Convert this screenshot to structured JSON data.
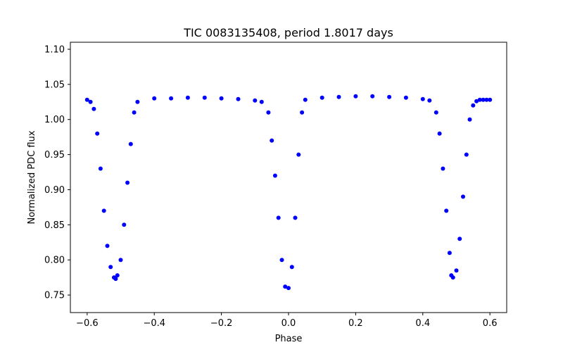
{
  "chart_data": {
    "type": "scatter",
    "title": "TIC 0083135408, period 1.8017 days",
    "xlabel": "Phase",
    "ylabel": "Normalized PDC flux",
    "xlim": [
      -0.65,
      0.65
    ],
    "ylim": [
      0.725,
      1.11
    ],
    "x_ticks": [
      -0.6,
      -0.4,
      -0.2,
      0.0,
      0.2,
      0.4,
      0.6
    ],
    "x_tick_labels": [
      "−0.6",
      "−0.4",
      "−0.2",
      "0.0",
      "0.2",
      "0.4",
      "0.6"
    ],
    "y_ticks": [
      0.75,
      0.8,
      0.85,
      0.9,
      0.95,
      1.0,
      1.05,
      1.1
    ],
    "y_tick_labels": [
      "0.75",
      "0.80",
      "0.85",
      "0.90",
      "0.95",
      "1.00",
      "1.05",
      "1.10"
    ],
    "grid": false,
    "marker_color": "#0000ff",
    "series": [
      {
        "x": [
          -0.6,
          -0.59,
          -0.58,
          -0.57,
          -0.56,
          -0.55,
          -0.54,
          -0.53,
          -0.52,
          -0.515,
          -0.51,
          -0.5,
          -0.49,
          -0.48,
          -0.47,
          -0.46,
          -0.45,
          -0.4,
          -0.35,
          -0.3,
          -0.25,
          -0.2,
          -0.15,
          -0.1,
          -0.08,
          -0.06,
          -0.05,
          -0.04,
          -0.03,
          -0.02,
          -0.01,
          0.0,
          0.01,
          0.02,
          0.03,
          0.04,
          0.05,
          0.1,
          0.15,
          0.2,
          0.25,
          0.3,
          0.35,
          0.4,
          0.42,
          0.44,
          0.45,
          0.46,
          0.47,
          0.48,
          0.485,
          0.49,
          0.5,
          0.51,
          0.52,
          0.53,
          0.54,
          0.55,
          0.56,
          0.57,
          0.58,
          0.59,
          0.6
        ],
        "y": [
          1.028,
          1.025,
          1.015,
          0.98,
          0.93,
          0.87,
          0.82,
          0.79,
          0.775,
          0.773,
          0.778,
          0.8,
          0.85,
          0.91,
          0.965,
          1.01,
          1.025,
          1.03,
          1.03,
          1.031,
          1.031,
          1.03,
          1.029,
          1.027,
          1.025,
          1.01,
          0.97,
          0.92,
          0.86,
          0.8,
          0.762,
          0.76,
          0.79,
          0.86,
          0.95,
          1.01,
          1.028,
          1.031,
          1.032,
          1.033,
          1.033,
          1.032,
          1.031,
          1.029,
          1.027,
          1.01,
          0.98,
          0.93,
          0.87,
          0.81,
          0.778,
          0.775,
          0.785,
          0.83,
          0.89,
          0.95,
          1.0,
          1.02,
          1.026,
          1.028,
          1.028,
          1.028,
          1.028
        ]
      }
    ]
  }
}
